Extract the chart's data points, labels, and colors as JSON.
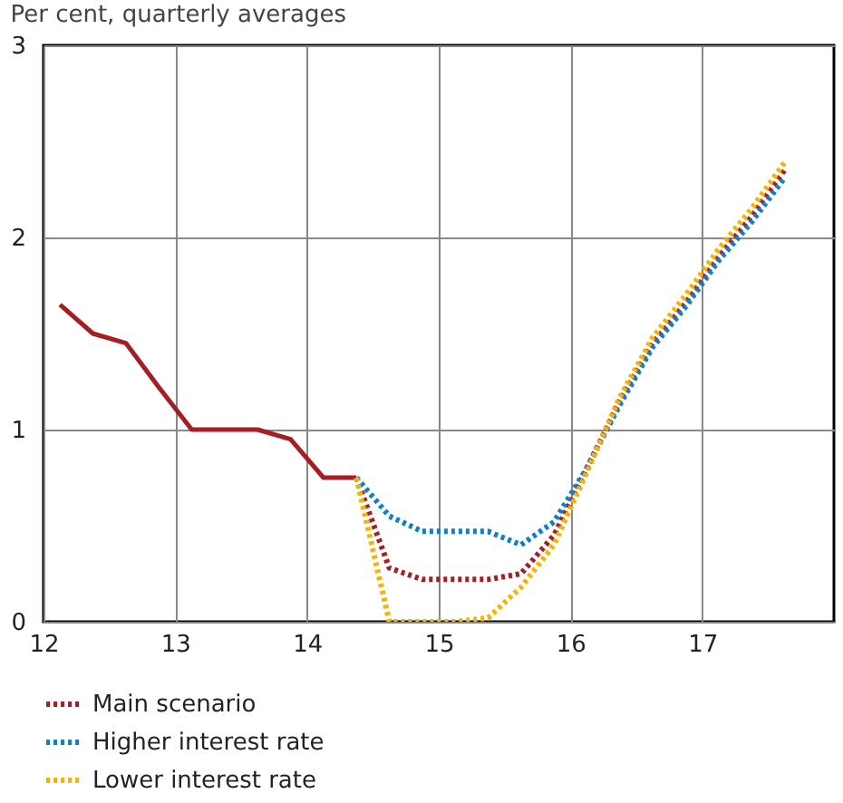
{
  "chart_data": {
    "type": "line",
    "title": "Per cent, quarterly averages",
    "xlim": [
      12,
      18
    ],
    "xticks": [
      12,
      13,
      14,
      15,
      16,
      17
    ],
    "ylim": [
      0,
      3
    ],
    "yticks": [
      0,
      1,
      2,
      3
    ],
    "grid": true,
    "legend": "bottom",
    "series": [
      {
        "color": "#a31f24",
        "line_style": "solid",
        "x": [
          12.125,
          12.375,
          12.625,
          12.875,
          13.125,
          13.375,
          13.625,
          13.875,
          14.125,
          14.375
        ],
        "values": [
          1.65,
          1.5,
          1.45,
          1.22,
          1.0,
          1.0,
          1.0,
          0.95,
          0.75,
          0.75
        ]
      },
      {
        "name": "Main scenario",
        "color": "#a31f24",
        "line_style": "dotted",
        "x": [
          14.375,
          14.625,
          14.875,
          15.125,
          15.375,
          15.625,
          15.875,
          16.125,
          16.375,
          16.625,
          16.875,
          17.125,
          17.375,
          17.625
        ],
        "values": [
          0.75,
          0.28,
          0.22,
          0.22,
          0.22,
          0.25,
          0.45,
          0.8,
          1.15,
          1.45,
          1.66,
          1.9,
          2.11,
          2.35
        ]
      },
      {
        "name": "Higher interest rate",
        "color": "#0f7fc8",
        "line_style": "dotted",
        "x": [
          14.375,
          14.625,
          14.875,
          15.125,
          15.375,
          15.625,
          15.875,
          16.125,
          16.375,
          16.625,
          16.875,
          17.125,
          17.375,
          17.625
        ],
        "values": [
          0.75,
          0.55,
          0.47,
          0.47,
          0.47,
          0.4,
          0.52,
          0.8,
          1.13,
          1.43,
          1.64,
          1.88,
          2.08,
          2.31
        ]
      },
      {
        "name": "Lower interest rate",
        "color": "#f5b400",
        "line_style": "dotted",
        "x": [
          14.375,
          14.625,
          14.875,
          15.125,
          15.375,
          15.625,
          15.875,
          16.125,
          16.375,
          16.625,
          16.875,
          17.125,
          17.375,
          17.625
        ],
        "values": [
          0.75,
          0.0,
          0.0,
          0.0,
          0.02,
          0.18,
          0.4,
          0.78,
          1.17,
          1.48,
          1.7,
          1.94,
          2.15,
          2.39
        ]
      }
    ]
  }
}
